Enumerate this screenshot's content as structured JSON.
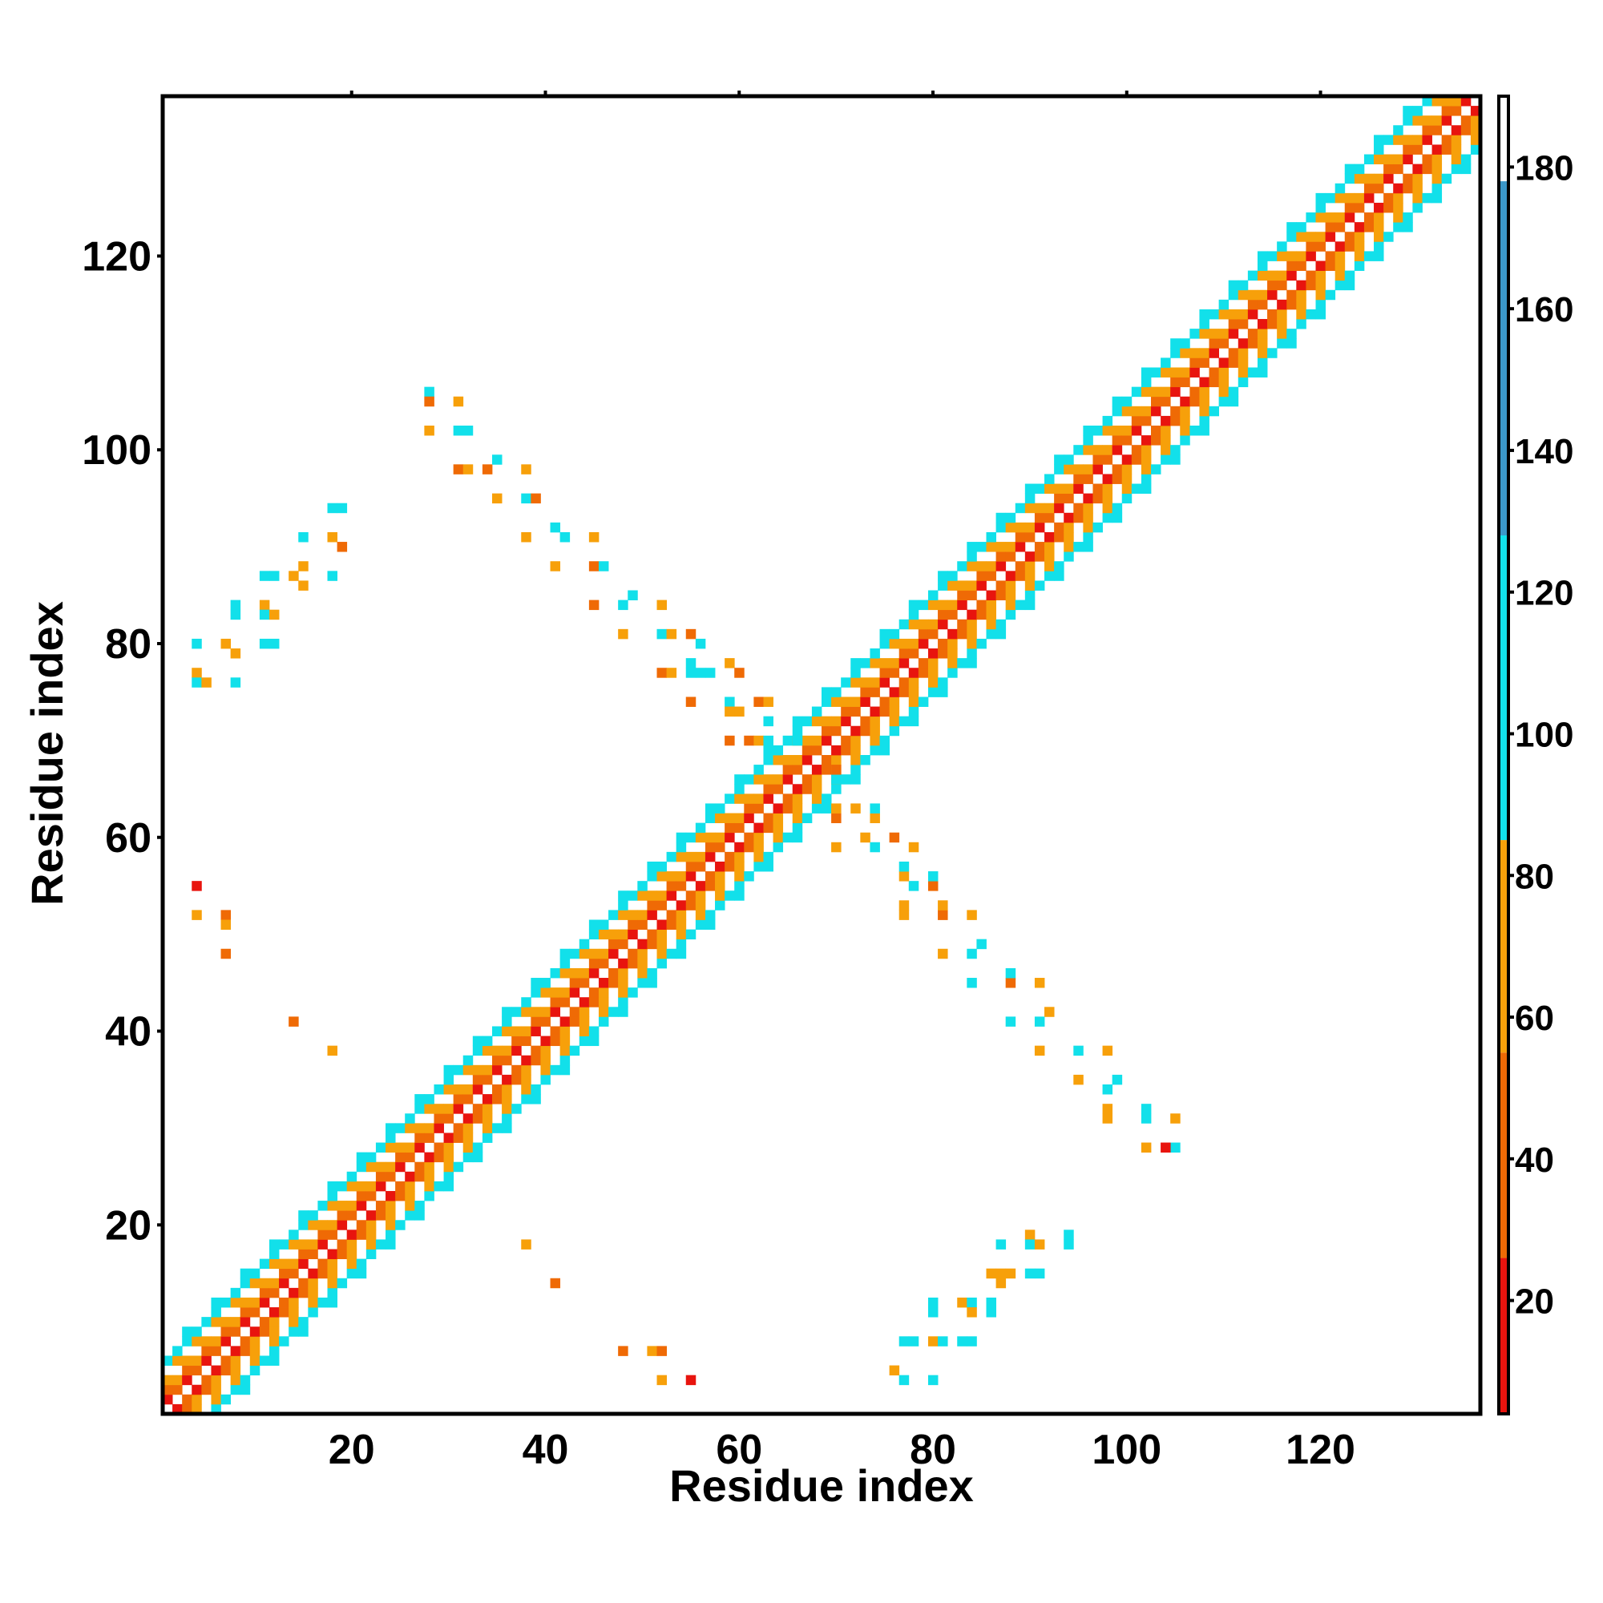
{
  "chart_data": {
    "type": "heatmap",
    "title": "",
    "xlabel": "Residue index",
    "ylabel": "Residue index",
    "n_residues": 136,
    "xlim": [
      1,
      136
    ],
    "ylim": [
      1,
      136
    ],
    "x_ticks": [
      20,
      40,
      60,
      80,
      100,
      120
    ],
    "y_ticks": [
      20,
      40,
      60,
      80,
      100,
      120
    ],
    "colorbar": {
      "range": [
        4,
        190
      ],
      "ticks": [
        20,
        40,
        60,
        80,
        100,
        120,
        140,
        160,
        180
      ],
      "bands": [
        {
          "from": 4,
          "to": 26,
          "color": "#e8140e"
        },
        {
          "from": 26,
          "to": 55,
          "color": "#ef6a05"
        },
        {
          "from": 55,
          "to": 85,
          "color": "#f7a00a"
        },
        {
          "from": 85,
          "to": 128,
          "color": "#12e0ea"
        },
        {
          "from": 128,
          "to": 178,
          "color": "#3b97c8"
        },
        {
          "from": 178,
          "to": 190,
          "color": "#ffffff"
        }
      ]
    },
    "description_values": {
      "diagonal_band_halfwidth": 6,
      "diagonal_pattern": "checkered offsets: 1-2 red/orange, 3-4 orange/white, 5-6 cyan"
    },
    "off_diagonal_contacts": [
      [
        4,
        55,
        20
      ],
      [
        4,
        52,
        70
      ],
      [
        7,
        52,
        50
      ],
      [
        7,
        51,
        70
      ],
      [
        7,
        48,
        40
      ],
      [
        14,
        41,
        40
      ],
      [
        18,
        38,
        70
      ],
      [
        4,
        80,
        100
      ],
      [
        4,
        77,
        70
      ],
      [
        4,
        76,
        100
      ],
      [
        5,
        76,
        70
      ],
      [
        7,
        80,
        70
      ],
      [
        8,
        79,
        70
      ],
      [
        8,
        76,
        100
      ],
      [
        8,
        84,
        100
      ],
      [
        8,
        83,
        100
      ],
      [
        11,
        87,
        100
      ],
      [
        12,
        87,
        100
      ],
      [
        11,
        84,
        70
      ],
      [
        11,
        83,
        100
      ],
      [
        12,
        83,
        70
      ],
      [
        11,
        80,
        100
      ],
      [
        12,
        80,
        100
      ],
      [
        14,
        87,
        70
      ],
      [
        15,
        86,
        70
      ],
      [
        15,
        88,
        70
      ],
      [
        15,
        91,
        100
      ],
      [
        18,
        94,
        100
      ],
      [
        19,
        94,
        100
      ],
      [
        18,
        91,
        70
      ],
      [
        19,
        90,
        40
      ],
      [
        18,
        87,
        100
      ],
      [
        28,
        106,
        100
      ],
      [
        28,
        105,
        40
      ],
      [
        31,
        105,
        70
      ],
      [
        28,
        102,
        70
      ],
      [
        31,
        102,
        100
      ],
      [
        32,
        102,
        100
      ],
      [
        31,
        98,
        40
      ],
      [
        32,
        98,
        70
      ],
      [
        34,
        98,
        40
      ],
      [
        35,
        99,
        100
      ],
      [
        35,
        95,
        70
      ],
      [
        38,
        98,
        70
      ],
      [
        38,
        95,
        100
      ],
      [
        39,
        95,
        40
      ],
      [
        38,
        91,
        70
      ],
      [
        41,
        92,
        100
      ],
      [
        42,
        91,
        100
      ],
      [
        41,
        88,
        70
      ],
      [
        45,
        91,
        70
      ],
      [
        45,
        88,
        40
      ],
      [
        46,
        88,
        100
      ],
      [
        45,
        84,
        40
      ],
      [
        48,
        84,
        100
      ],
      [
        49,
        85,
        100
      ],
      [
        48,
        81,
        70
      ],
      [
        52,
        84,
        70
      ],
      [
        52,
        81,
        100
      ],
      [
        53,
        81,
        70
      ],
      [
        52,
        77,
        40
      ],
      [
        53,
        77,
        70
      ],
      [
        55,
        81,
        40
      ],
      [
        56,
        80,
        100
      ],
      [
        55,
        78,
        100
      ],
      [
        56,
        77,
        100
      ],
      [
        57,
        77,
        100
      ],
      [
        55,
        74,
        40
      ],
      [
        55,
        77,
        100
      ],
      [
        59,
        78,
        70
      ],
      [
        60,
        77,
        40
      ],
      [
        59,
        74,
        100
      ],
      [
        60,
        73,
        70
      ],
      [
        59,
        73,
        70
      ],
      [
        62,
        74,
        40
      ],
      [
        63,
        74,
        70
      ],
      [
        63,
        72,
        100
      ],
      [
        59,
        70,
        40
      ],
      [
        61,
        70,
        40
      ],
      [
        62,
        70,
        70
      ],
      [
        63,
        70,
        100
      ],
      [
        66,
        70,
        100
      ],
      [
        77,
        8,
        100
      ],
      [
        78,
        8,
        100
      ],
      [
        76,
        5,
        70
      ],
      [
        77,
        4,
        100
      ],
      [
        80,
        8,
        70
      ],
      [
        81,
        8,
        100
      ],
      [
        80,
        4,
        100
      ],
      [
        80,
        12,
        100
      ],
      [
        80,
        11,
        100
      ],
      [
        83,
        12,
        70
      ],
      [
        84,
        12,
        100
      ],
      [
        84,
        11,
        70
      ],
      [
        86,
        12,
        100
      ],
      [
        86,
        11,
        100
      ],
      [
        83,
        8,
        100
      ],
      [
        84,
        8,
        100
      ],
      [
        86,
        15,
        70
      ],
      [
        87,
        15,
        70
      ],
      [
        87,
        14,
        70
      ],
      [
        88,
        15,
        70
      ],
      [
        87,
        18,
        100
      ],
      [
        90,
        19,
        70
      ],
      [
        90,
        18,
        100
      ],
      [
        91,
        18,
        70
      ],
      [
        90,
        15,
        100
      ],
      [
        91,
        15,
        100
      ],
      [
        94,
        19,
        100
      ],
      [
        94,
        18,
        100
      ],
      [
        48,
        7,
        40
      ],
      [
        51,
        7,
        70
      ],
      [
        52,
        7,
        40
      ],
      [
        52,
        4,
        70
      ],
      [
        55,
        4,
        20
      ],
      [
        38,
        18,
        70
      ],
      [
        41,
        14,
        40
      ],
      [
        105,
        28,
        100
      ],
      [
        104,
        28,
        20
      ],
      [
        102,
        28,
        70
      ],
      [
        102,
        31,
        100
      ],
      [
        105,
        31,
        70
      ],
      [
        102,
        32,
        100
      ],
      [
        98,
        31,
        70
      ],
      [
        98,
        32,
        70
      ],
      [
        98,
        34,
        100
      ],
      [
        99,
        35,
        100
      ],
      [
        98,
        38,
        70
      ],
      [
        95,
        35,
        70
      ],
      [
        95,
        38,
        100
      ],
      [
        91,
        38,
        70
      ],
      [
        91,
        41,
        100
      ],
      [
        92,
        42,
        70
      ],
      [
        88,
        41,
        100
      ],
      [
        91,
        45,
        70
      ],
      [
        88,
        45,
        40
      ],
      [
        88,
        46,
        100
      ],
      [
        84,
        45,
        100
      ],
      [
        84,
        48,
        100
      ],
      [
        85,
        49,
        100
      ],
      [
        81,
        48,
        70
      ],
      [
        84,
        52,
        70
      ],
      [
        81,
        52,
        40
      ],
      [
        81,
        53,
        70
      ],
      [
        77,
        52,
        70
      ],
      [
        77,
        53,
        70
      ],
      [
        80,
        55,
        40
      ],
      [
        80,
        56,
        100
      ],
      [
        78,
        55,
        100
      ],
      [
        77,
        56,
        70
      ],
      [
        77,
        57,
        100
      ],
      [
        78,
        59,
        70
      ],
      [
        76,
        60,
        40
      ],
      [
        74,
        59,
        100
      ],
      [
        73,
        60,
        70
      ],
      [
        74,
        62,
        70
      ],
      [
        74,
        63,
        100
      ],
      [
        72,
        63,
        70
      ],
      [
        70,
        59,
        70
      ],
      [
        70,
        62,
        40
      ],
      [
        70,
        63,
        70
      ],
      [
        70,
        66,
        100
      ],
      [
        70,
        67,
        40
      ]
    ]
  }
}
